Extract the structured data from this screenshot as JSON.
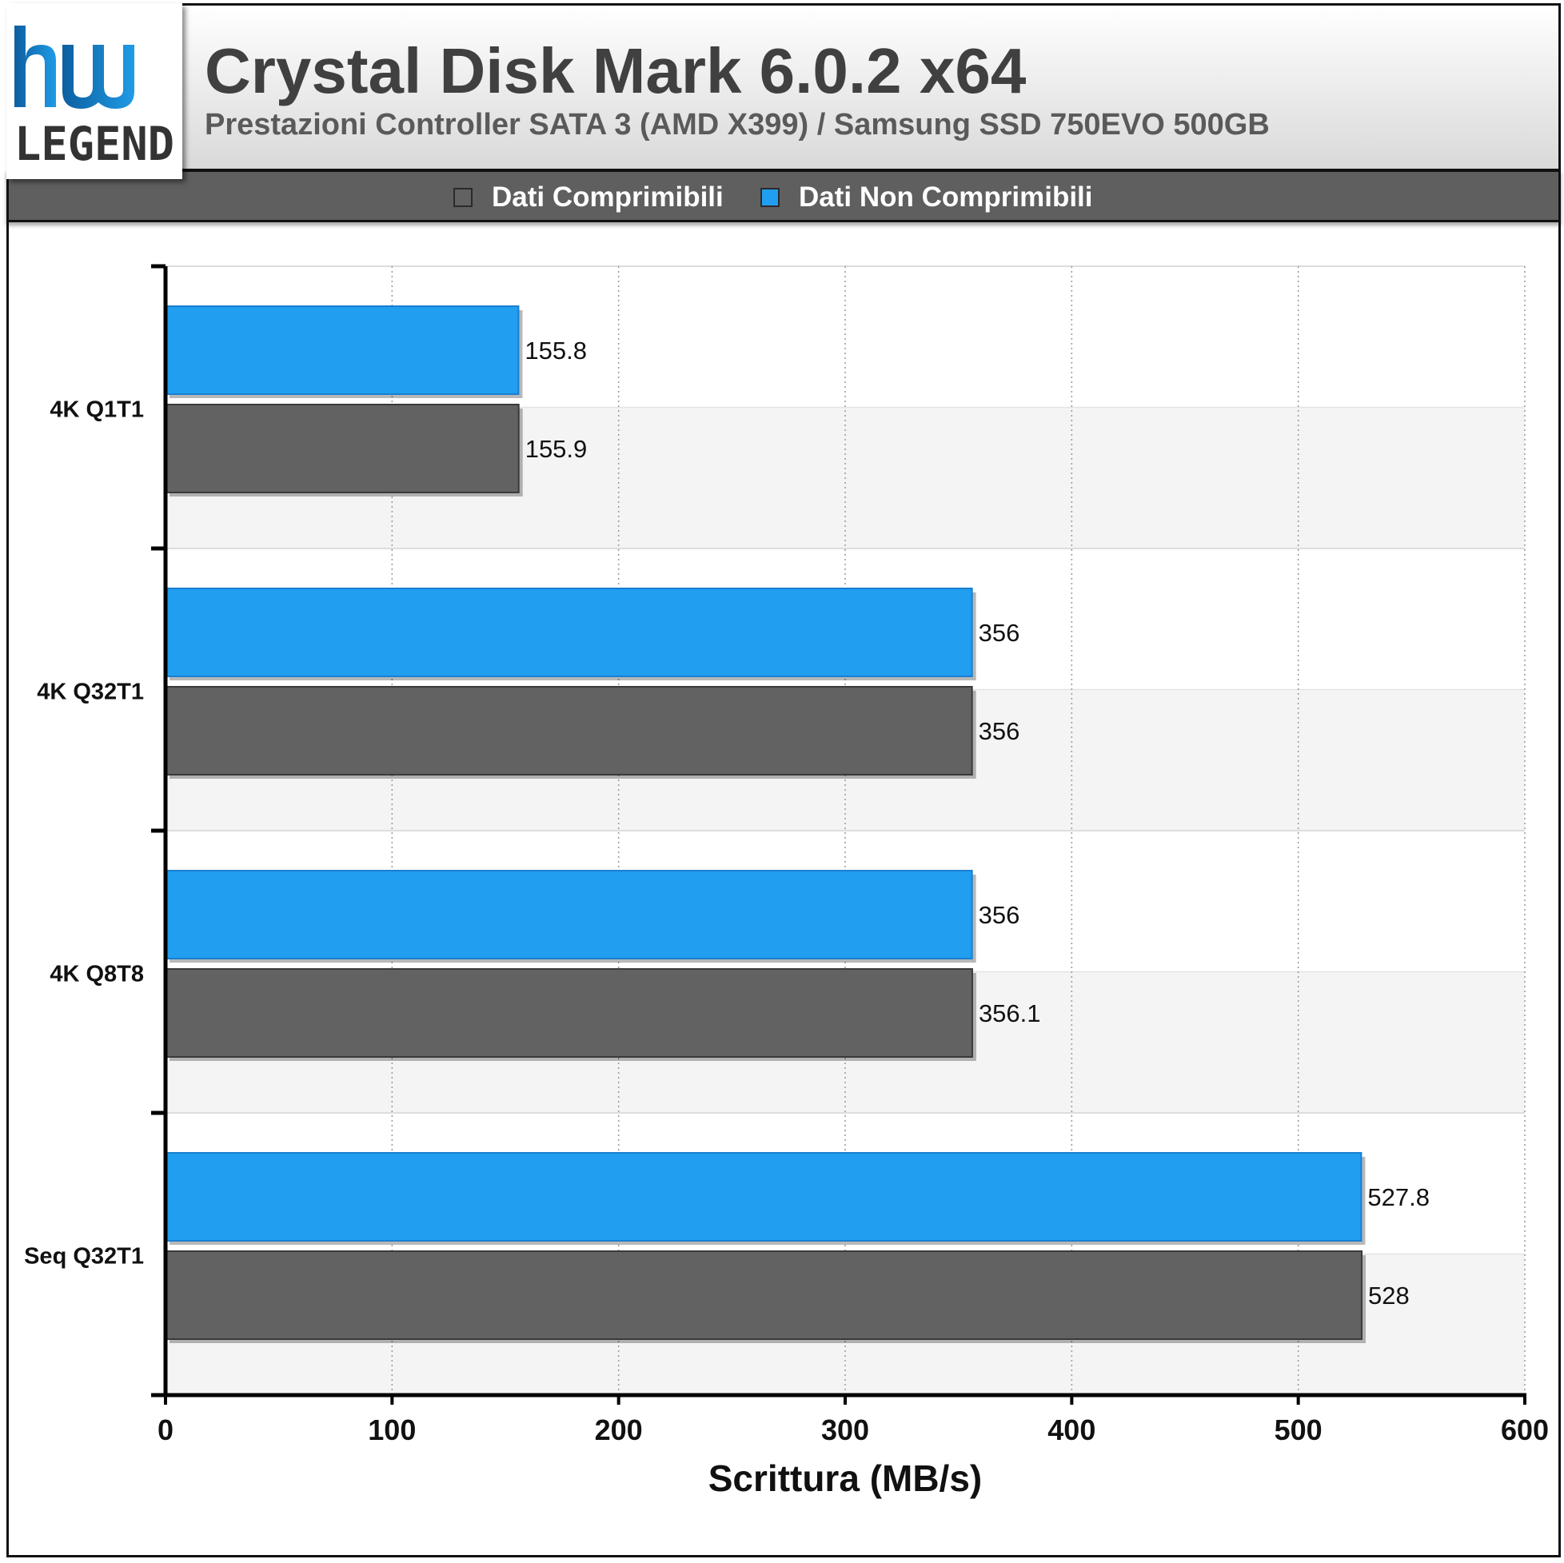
{
  "header": {
    "logo_text": "hw LEGEND",
    "title": "Crystal Disk Mark 6.0.2 x64",
    "subtitle": "Prestazioni Controller SATA 3 (AMD X399) / Samsung SSD 750EVO 500GB"
  },
  "legend": [
    {
      "label": "Dati Comprimibili",
      "color": "#626262"
    },
    {
      "label": "Dati Non Comprimibili",
      "color": "#219EEF"
    }
  ],
  "chart_data": {
    "type": "bar",
    "orientation": "horizontal",
    "categories": [
      "4K Q1T1",
      "4K Q32T1",
      "4K Q8T8",
      "Seq Q32T1"
    ],
    "series": [
      {
        "name": "Dati Non Comprimibili",
        "color": "#219EEF",
        "values": [
          155.8,
          356,
          356,
          527.8
        ],
        "labels": [
          "155.8",
          "356",
          "356",
          "527.8"
        ]
      },
      {
        "name": "Dati Comprimibili",
        "color": "#626262",
        "values": [
          155.9,
          356,
          356.1,
          528
        ],
        "labels": [
          "155.9",
          "356",
          "356.1",
          "528"
        ]
      }
    ],
    "xlabel": "Scrittura (MB/s)",
    "xlim": [
      0,
      600
    ],
    "xticks": [
      "0",
      "100",
      "200",
      "300",
      "400",
      "500",
      "600"
    ],
    "grid": true,
    "legend_position": "top"
  }
}
